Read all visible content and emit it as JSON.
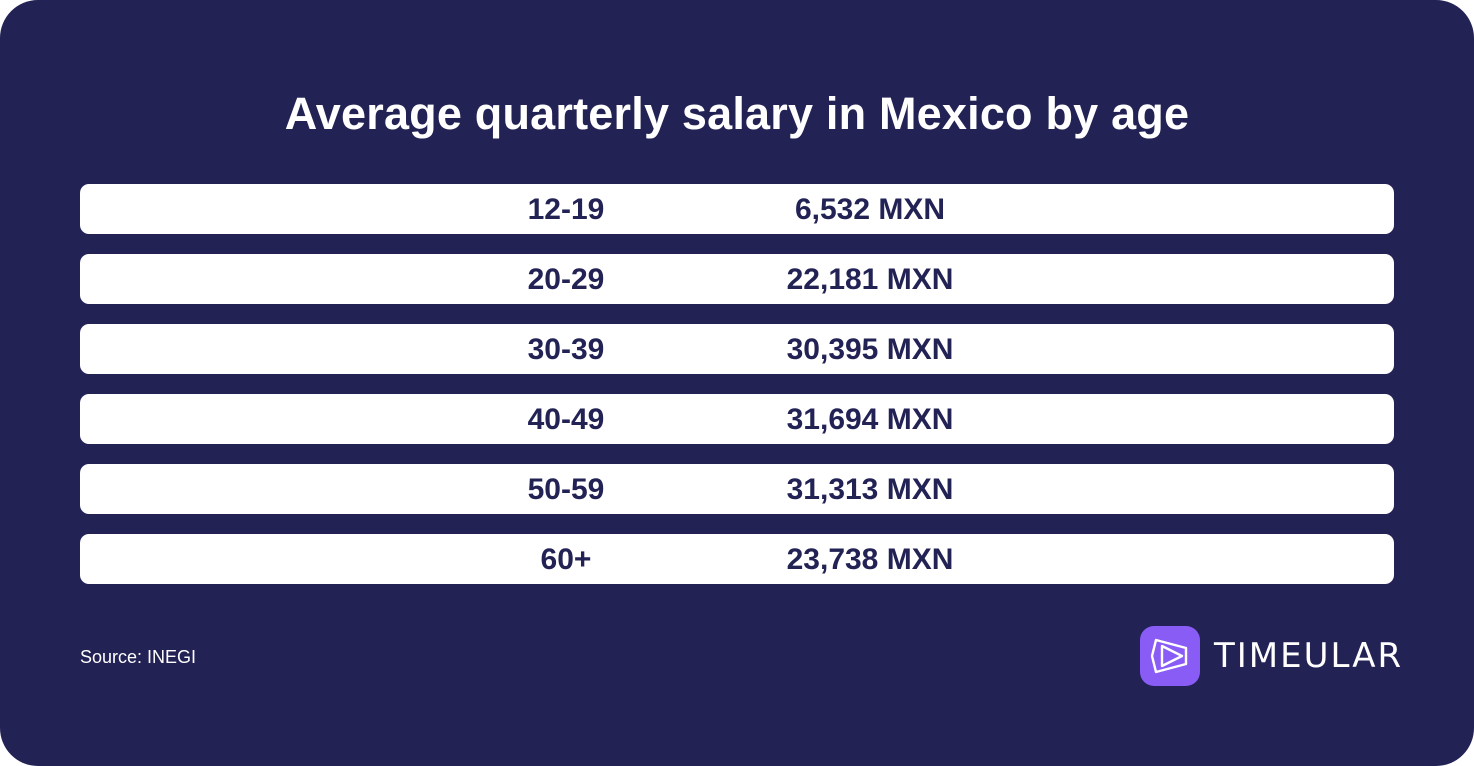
{
  "chart_data": {
    "type": "table",
    "title": "Average quarterly salary in Mexico by age",
    "categories": [
      "12-19",
      "20-29",
      "30-39",
      "40-49",
      "50-59",
      "60+"
    ],
    "values": [
      6532,
      22181,
      30395,
      31694,
      31313,
      23738
    ],
    "rows": [
      {
        "age": "12-19",
        "salary": "6,532 MXN"
      },
      {
        "age": "20-29",
        "salary": "22,181 MXN"
      },
      {
        "age": "30-39",
        "salary": "30,395 MXN"
      },
      {
        "age": "40-49",
        "salary": "31,694 MXN"
      },
      {
        "age": "50-59",
        "salary": "31,313 MXN"
      },
      {
        "age": "60+",
        "salary": "23,738 MXN"
      }
    ]
  },
  "footer": {
    "source": "Source: INEGI",
    "brand": "TIMEULAR",
    "brand_icon": "timeular-logo-icon"
  },
  "colors": {
    "background": "#232255",
    "row_background": "#ffffff",
    "row_text": "#232255",
    "brand_accent": "#8a5cf6"
  }
}
